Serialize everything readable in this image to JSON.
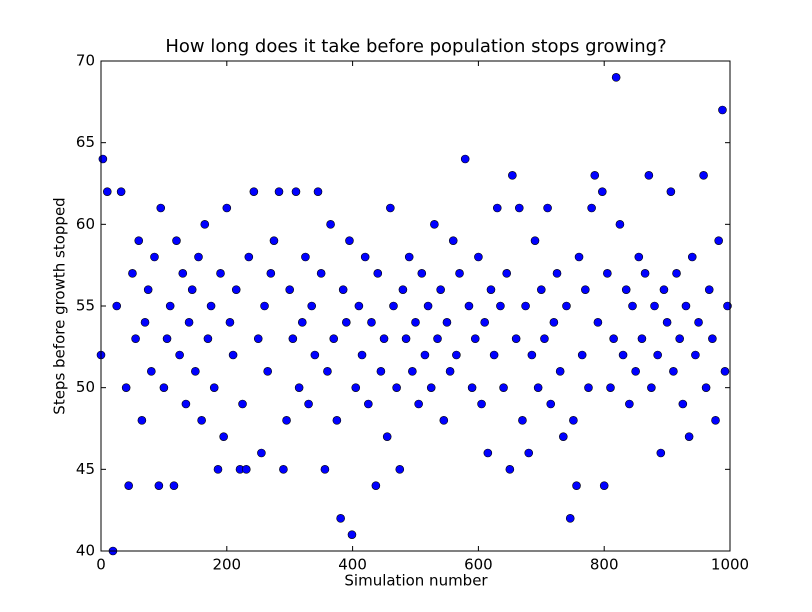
{
  "chart_data": {
    "type": "scatter",
    "title": "How long does it take before population stops growing?",
    "xlabel": "Simulation number",
    "ylabel": "Steps before growth stopped",
    "color": "#0000ff",
    "x": [
      0,
      3,
      10,
      19,
      25,
      32,
      40,
      44,
      50,
      55,
      60,
      65,
      70,
      75,
      80,
      85,
      92,
      95,
      100,
      105,
      110,
      116,
      120,
      125,
      130,
      135,
      140,
      145,
      150,
      155,
      160,
      165,
      170,
      175,
      180,
      186,
      190,
      195,
      200,
      205,
      210,
      215,
      221,
      225,
      231,
      235,
      243,
      250,
      255,
      260,
      265,
      270,
      275,
      283,
      290,
      295,
      300,
      305,
      310,
      315,
      320,
      325,
      330,
      335,
      340,
      345,
      350,
      356,
      360,
      365,
      370,
      375,
      381,
      385,
      390,
      395,
      399,
      405,
      410,
      415,
      420,
      425,
      430,
      437,
      440,
      445,
      450,
      455,
      460,
      465,
      470,
      475,
      480,
      485,
      490,
      495,
      500,
      505,
      510,
      515,
      520,
      525,
      530,
      535,
      540,
      545,
      550,
      555,
      560,
      565,
      570,
      579,
      585,
      590,
      595,
      600,
      605,
      610,
      615,
      620,
      625,
      630,
      635,
      640,
      645,
      650,
      654,
      660,
      665,
      670,
      675,
      680,
      685,
      690,
      695,
      700,
      705,
      710,
      715,
      720,
      725,
      730,
      735,
      740,
      746,
      751,
      756,
      760,
      765,
      770,
      775,
      780,
      785,
      790,
      797,
      800,
      805,
      810,
      815,
      819,
      825,
      830,
      835,
      840,
      845,
      850,
      855,
      860,
      865,
      871,
      875,
      880,
      885,
      890,
      895,
      900,
      906,
      910,
      915,
      920,
      925,
      930,
      935,
      940,
      945,
      950,
      958,
      962,
      967,
      972,
      977,
      982,
      988,
      992,
      996
    ],
    "values": [
      52,
      64,
      62,
      40,
      55,
      62,
      50,
      44,
      57,
      53,
      59,
      48,
      54,
      56,
      51,
      58,
      44,
      61,
      50,
      53,
      55,
      44,
      59,
      52,
      57,
      49,
      54,
      56,
      51,
      58,
      48,
      60,
      53,
      55,
      50,
      45,
      57,
      47,
      61,
      54,
      52,
      56,
      45,
      49,
      45,
      58,
      62,
      53,
      46,
      55,
      51,
      57,
      59,
      62,
      45,
      48,
      56,
      53,
      62,
      50,
      54,
      58,
      49,
      55,
      52,
      62,
      57,
      45,
      51,
      60,
      53,
      48,
      42,
      56,
      54,
      59,
      41,
      50,
      55,
      52,
      58,
      49,
      54,
      44,
      57,
      51,
      53,
      47,
      61,
      55,
      50,
      45,
      56,
      53,
      58,
      51,
      54,
      49,
      57,
      52,
      55,
      50,
      60,
      53,
      56,
      48,
      54,
      51,
      59,
      52,
      57,
      64,
      55,
      50,
      53,
      58,
      49,
      54,
      46,
      56,
      52,
      61,
      55,
      50,
      57,
      45,
      63,
      53,
      61,
      48,
      55,
      46,
      52,
      59,
      50,
      56,
      53,
      61,
      49,
      54,
      57,
      51,
      47,
      55,
      42,
      48,
      44,
      58,
      52,
      56,
      50,
      61,
      63,
      54,
      62,
      44,
      57,
      50,
      53,
      69,
      60,
      52,
      56,
      49,
      55,
      51,
      58,
      53,
      57,
      63,
      50,
      55,
      52,
      46,
      56,
      54,
      62,
      51,
      57,
      53,
      49,
      55,
      47,
      58,
      52,
      54,
      63,
      50,
      56,
      53,
      48,
      59,
      67,
      51,
      55
    ],
    "xlim": [
      0,
      1000
    ],
    "xticks": [
      0,
      200,
      400,
      600,
      800,
      1000
    ],
    "ylim": [
      40,
      70
    ],
    "yticks": [
      40,
      45,
      50,
      55,
      60,
      65,
      70
    ]
  }
}
